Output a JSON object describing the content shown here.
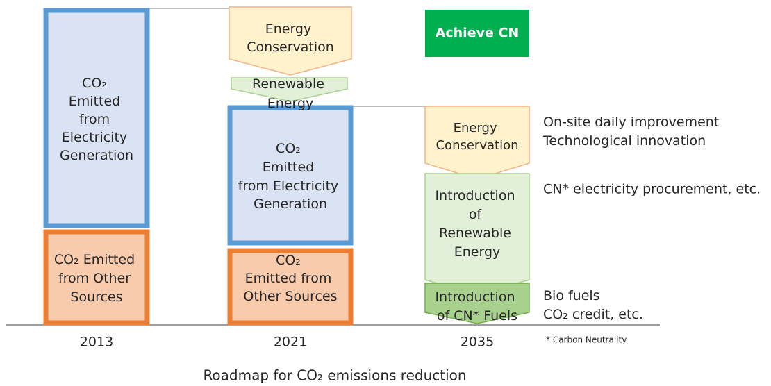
{
  "columns": [
    {
      "year": "2013",
      "electricity": [
        "CO₂",
        "Emitted",
        "from",
        "Electricity",
        "Generation"
      ],
      "other": [
        "CO₂ Emitted",
        "from Other",
        "Sources"
      ]
    },
    {
      "year": "2021",
      "conservation": [
        "Energy",
        "Conservation"
      ],
      "renewable": [
        "Renewable",
        "Energy"
      ],
      "electricity": [
        "CO₂",
        "Emitted",
        "from Electricity",
        "Generation"
      ],
      "other": [
        "CO₂",
        "Emitted from",
        "Other Sources"
      ]
    },
    {
      "year": "2035",
      "goal": "Achieve CN",
      "conservation": [
        "Energy",
        "Conservation"
      ],
      "renewable": [
        "Introduction",
        "of",
        "Renewable",
        "Energy"
      ],
      "fuels": [
        "Introduction",
        "of CN* Fuels"
      ]
    }
  ],
  "notes": [
    [
      "On-site daily improvement",
      "Technological innovation"
    ],
    [
      "CN* electricity procurement, etc."
    ],
    [
      "Bio fuels",
      "CO₂ credit, etc."
    ]
  ],
  "footnote": "* Carbon Neutrality",
  "caption": "Roadmap for CO₂ emissions reduction"
}
